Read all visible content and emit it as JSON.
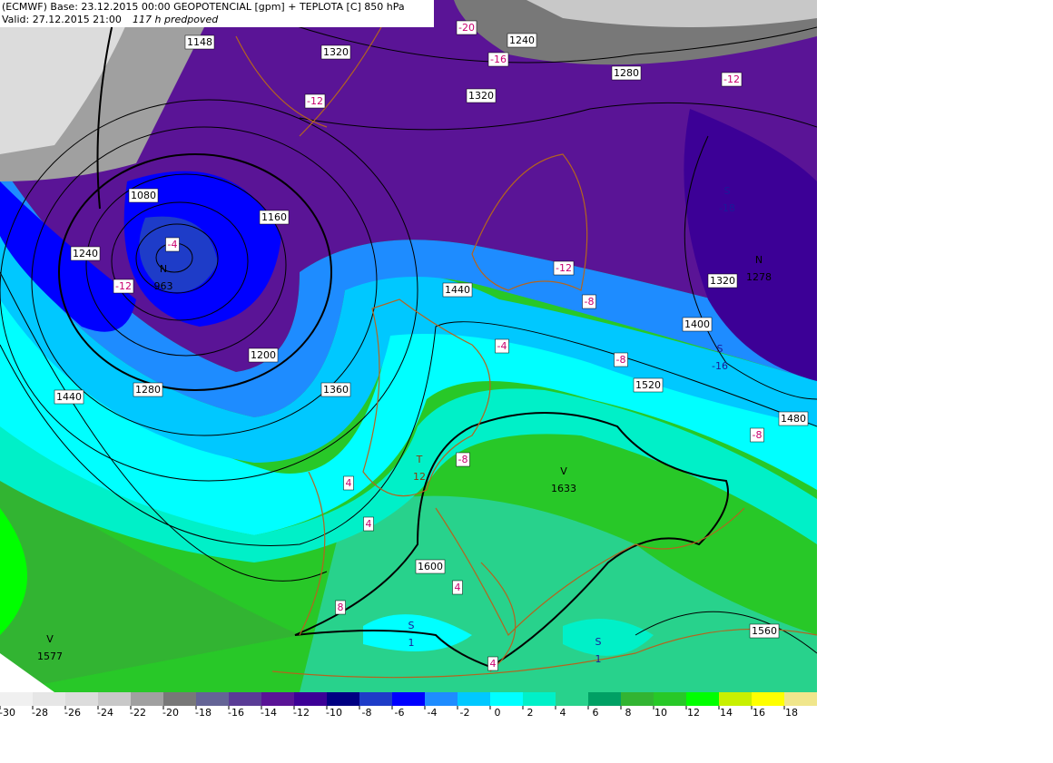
{
  "header": {
    "line1": "(ECMWF) Base: 23.12.2015 00:00 GEOPOTENCIAL [gpm] + TEPLOTA [C] 850 hPa",
    "valid": "Valid: 27.12.2015 21:00",
    "forecast": "117 h predpoved"
  },
  "contour_labels": [
    1148,
    1320,
    1240,
    1280,
    1320,
    1080,
    1160,
    1240,
    1440,
    1320,
    1400,
    1200,
    1280,
    1440,
    1360,
    1520,
    1480,
    1600,
    1560
  ],
  "temperature_labels": [
    -20,
    -16,
    -12,
    -12,
    -12,
    -12,
    -4,
    -8,
    -4,
    -8,
    -8,
    -8,
    4,
    4,
    4,
    8,
    4
  ],
  "centers": [
    {
      "symbol": "N",
      "value": 963
    },
    {
      "symbol": "N",
      "value": 1278
    },
    {
      "symbol": "S",
      "value": -18
    },
    {
      "symbol": "S",
      "value": -16
    },
    {
      "symbol": "T",
      "value": 12
    },
    {
      "symbol": "V",
      "value": 1633
    },
    {
      "symbol": "S",
      "value": 1
    },
    {
      "symbol": "S",
      "value": 1
    },
    {
      "symbol": "V",
      "value": 1577
    }
  ],
  "legend": {
    "values": [
      -30,
      -28,
      -26,
      -24,
      -22,
      -20,
      -18,
      -16,
      -14,
      -12,
      -10,
      -8,
      -6,
      -4,
      -2,
      0,
      2,
      4,
      6,
      8,
      10,
      12,
      14,
      16,
      18
    ],
    "colors": [
      "#f0f0f0",
      "#e6e6e6",
      "#dcdcdc",
      "#c8c8c8",
      "#a0a0a0",
      "#787878",
      "#646496",
      "#5a3c96",
      "#5a1496",
      "#3c0096",
      "#000082",
      "#1e3cc8",
      "#0000ff",
      "#1e8cff",
      "#00c8ff",
      "#00ffff",
      "#00f0c8",
      "#28d28c",
      "#00a064",
      "#32b432",
      "#28c828",
      "#00ff00",
      "#c8f000",
      "#ffff00",
      "#f0e68c"
    ]
  }
}
